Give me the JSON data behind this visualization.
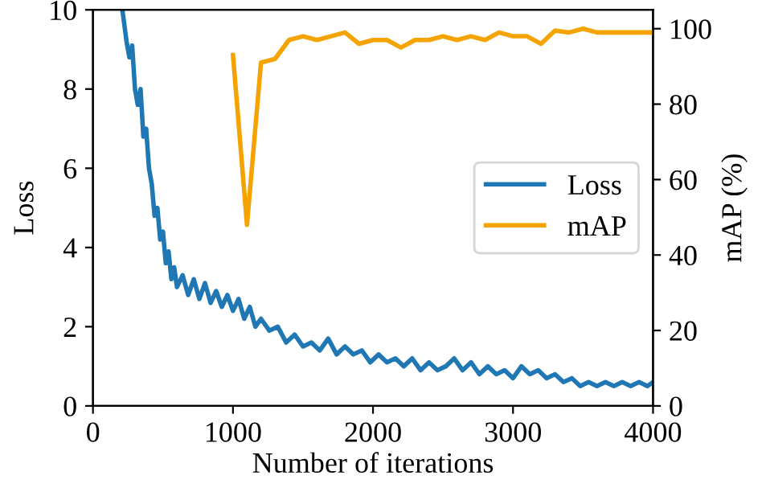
{
  "chart_data": {
    "type": "line",
    "xlabel": "Number of iterations",
    "ylabel": "Loss",
    "y2label": "mAP (%)",
    "xlim": [
      0,
      4000
    ],
    "xticks": [
      0,
      1000,
      2000,
      3000,
      4000
    ],
    "ylim": [
      0,
      10
    ],
    "yticks": [
      0,
      2,
      4,
      6,
      8,
      10
    ],
    "y2lim": [
      0,
      105
    ],
    "y2ticks": [
      0,
      20,
      40,
      60,
      80,
      100
    ],
    "legend": "right",
    "grid": false,
    "series": [
      {
        "name": "Loss",
        "color": "#1f77b4",
        "x": [
          210,
          240,
          260,
          280,
          300,
          320,
          340,
          360,
          380,
          400,
          420,
          440,
          460,
          480,
          500,
          520,
          540,
          560,
          580,
          600,
          640,
          680,
          720,
          760,
          800,
          840,
          880,
          920,
          960,
          1000,
          1040,
          1080,
          1120,
          1160,
          1200,
          1260,
          1320,
          1380,
          1440,
          1500,
          1560,
          1620,
          1680,
          1740,
          1800,
          1860,
          1920,
          1980,
          2040,
          2100,
          2160,
          2220,
          2280,
          2340,
          2400,
          2460,
          2520,
          2580,
          2640,
          2700,
          2760,
          2820,
          2880,
          2940,
          3000,
          3060,
          3120,
          3180,
          3240,
          3300,
          3360,
          3420,
          3480,
          3540,
          3600,
          3660,
          3720,
          3780,
          3840,
          3900,
          3960,
          4000
        ],
        "values": [
          10.0,
          9.2,
          8.8,
          9.1,
          8.0,
          7.6,
          8.0,
          6.8,
          7.0,
          6.0,
          5.6,
          4.8,
          5.0,
          4.2,
          4.4,
          3.6,
          3.9,
          3.2,
          3.5,
          3.0,
          3.3,
          2.8,
          3.2,
          2.7,
          3.1,
          2.6,
          2.9,
          2.5,
          2.8,
          2.4,
          2.7,
          2.2,
          2.5,
          2.0,
          2.2,
          1.9,
          2.0,
          1.6,
          1.8,
          1.5,
          1.6,
          1.4,
          1.7,
          1.3,
          1.5,
          1.3,
          1.4,
          1.1,
          1.3,
          1.1,
          1.2,
          1.0,
          1.2,
          0.9,
          1.1,
          0.9,
          1.0,
          1.2,
          0.9,
          1.1,
          0.8,
          1.0,
          0.8,
          0.9,
          0.7,
          1.0,
          0.8,
          0.9,
          0.7,
          0.8,
          0.6,
          0.7,
          0.5,
          0.6,
          0.5,
          0.6,
          0.5,
          0.6,
          0.5,
          0.6,
          0.5,
          0.6
        ]
      },
      {
        "name": "mAP",
        "color": "#f5a300",
        "axis": "y2",
        "x": [
          1000,
          1100,
          1200,
          1300,
          1400,
          1500,
          1600,
          1700,
          1800,
          1900,
          2000,
          2100,
          2200,
          2300,
          2400,
          2500,
          2600,
          2700,
          2800,
          2900,
          3000,
          3100,
          3200,
          3300,
          3400,
          3500,
          3600,
          3700,
          3800,
          3900,
          4000
        ],
        "values": [
          93,
          48,
          91,
          92,
          97,
          98,
          97,
          98,
          99,
          96,
          97,
          97,
          95,
          97,
          97,
          98,
          97,
          98,
          97,
          99,
          98,
          98,
          96,
          99.5,
          99,
          100,
          99,
          99,
          99,
          99,
          99
        ]
      }
    ]
  }
}
